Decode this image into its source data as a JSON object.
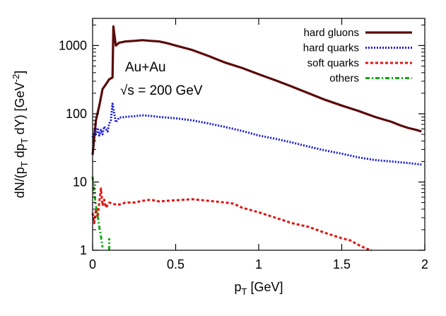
{
  "chart_data": {
    "type": "line",
    "title": "",
    "xlabel": "p_T [GeV]",
    "ylabel": "dN/(p_T dp_T dY) [GeV^-2]",
    "xlabel_parts": {
      "main": "p",
      "sub": "T",
      "rest": " [GeV]"
    },
    "ylabel_parts": {
      "a": "dN/(p",
      "s1": "T",
      "b": " dp",
      "s2": "T",
      "c": " dY) [GeV",
      "sup": "-2",
      "d": "]"
    },
    "xlim": [
      0,
      2
    ],
    "ylim": [
      1,
      2500
    ],
    "y_scale": "log",
    "grid": false,
    "legend_position": "top-right",
    "x_ticks": [
      0,
      0.5,
      1,
      1.5,
      2
    ],
    "x_tick_labels": [
      "0",
      "0.5",
      "1",
      "1.5",
      "2"
    ],
    "y_ticks": [
      1,
      10,
      100,
      1000
    ],
    "y_tick_labels": [
      "1",
      "10",
      "100",
      "1000"
    ],
    "annotations": [
      "Au+Au",
      "√s = 200 GeV"
    ],
    "series": [
      {
        "name": "hard gluons",
        "color": "#5a0a0a",
        "style": "solid",
        "x": [
          0.0,
          0.02,
          0.04,
          0.06,
          0.08,
          0.1,
          0.12,
          0.125,
          0.13,
          0.14,
          0.16,
          0.2,
          0.25,
          0.3,
          0.35,
          0.4,
          0.45,
          0.5,
          0.6,
          0.7,
          0.8,
          0.9,
          1.0,
          1.1,
          1.2,
          1.3,
          1.4,
          1.5,
          1.6,
          1.7,
          1.8,
          1.85,
          1.9,
          1.95,
          1.98
        ],
        "values": [
          25,
          80,
          130,
          230,
          270,
          320,
          340,
          1900,
          1500,
          1000,
          1100,
          1150,
          1170,
          1200,
          1170,
          1150,
          1080,
          1000,
          860,
          700,
          560,
          470,
          380,
          310,
          250,
          200,
          160,
          132,
          110,
          90,
          76,
          68,
          62,
          58,
          55
        ]
      },
      {
        "name": "hard quarks",
        "color": "#1a1ad8",
        "style": "dotted",
        "x": [
          0.0,
          0.01,
          0.02,
          0.03,
          0.04,
          0.05,
          0.06,
          0.07,
          0.08,
          0.09,
          0.1,
          0.11,
          0.12,
          0.13,
          0.14,
          0.16,
          0.2,
          0.25,
          0.3,
          0.35,
          0.4,
          0.5,
          0.6,
          0.7,
          0.8,
          0.9,
          1.0,
          1.1,
          1.2,
          1.3,
          1.4,
          1.5,
          1.6,
          1.7,
          1.8,
          1.9,
          1.98
        ],
        "values": [
          45,
          55,
          50,
          62,
          48,
          58,
          50,
          65,
          60,
          55,
          72,
          80,
          140,
          100,
          75,
          88,
          90,
          92,
          95,
          93,
          90,
          86,
          80,
          72,
          64,
          56,
          48,
          43,
          38,
          33,
          29,
          26,
          23,
          21,
          20,
          19,
          18
        ]
      },
      {
        "name": "soft quarks",
        "color": "#e01414",
        "style": "dashed",
        "x": [
          0.0,
          0.01,
          0.02,
          0.03,
          0.04,
          0.05,
          0.06,
          0.07,
          0.08,
          0.1,
          0.12,
          0.15,
          0.2,
          0.25,
          0.3,
          0.35,
          0.4,
          0.5,
          0.6,
          0.7,
          0.8,
          0.85,
          0.9,
          1.0,
          1.1,
          1.2,
          1.3,
          1.4,
          1.5,
          1.55,
          1.6,
          1.65,
          1.68
        ],
        "values": [
          3.5,
          2.5,
          4.0,
          3.0,
          5.0,
          8.0,
          4.5,
          5.5,
          4.2,
          5.0,
          4.8,
          4.6,
          5.0,
          5.0,
          5.3,
          5.5,
          5.2,
          5.4,
          5.6,
          5.3,
          5.0,
          4.8,
          4.2,
          3.6,
          3.0,
          2.5,
          2.2,
          1.8,
          1.5,
          1.4,
          1.2,
          1.05,
          1.0
        ]
      },
      {
        "name": "others",
        "color": "#12a812",
        "style": "dashdot",
        "x": [
          0.0,
          0.01,
          0.02,
          0.03,
          0.04,
          0.05,
          0.06
        ],
        "values": [
          12,
          7,
          4.5,
          3.2,
          2.2,
          1.6,
          1.1
        ],
        "extra_segment": {
          "x": [
            0.1,
            0.1
          ],
          "values": [
            1.0,
            1.5
          ]
        }
      }
    ]
  }
}
